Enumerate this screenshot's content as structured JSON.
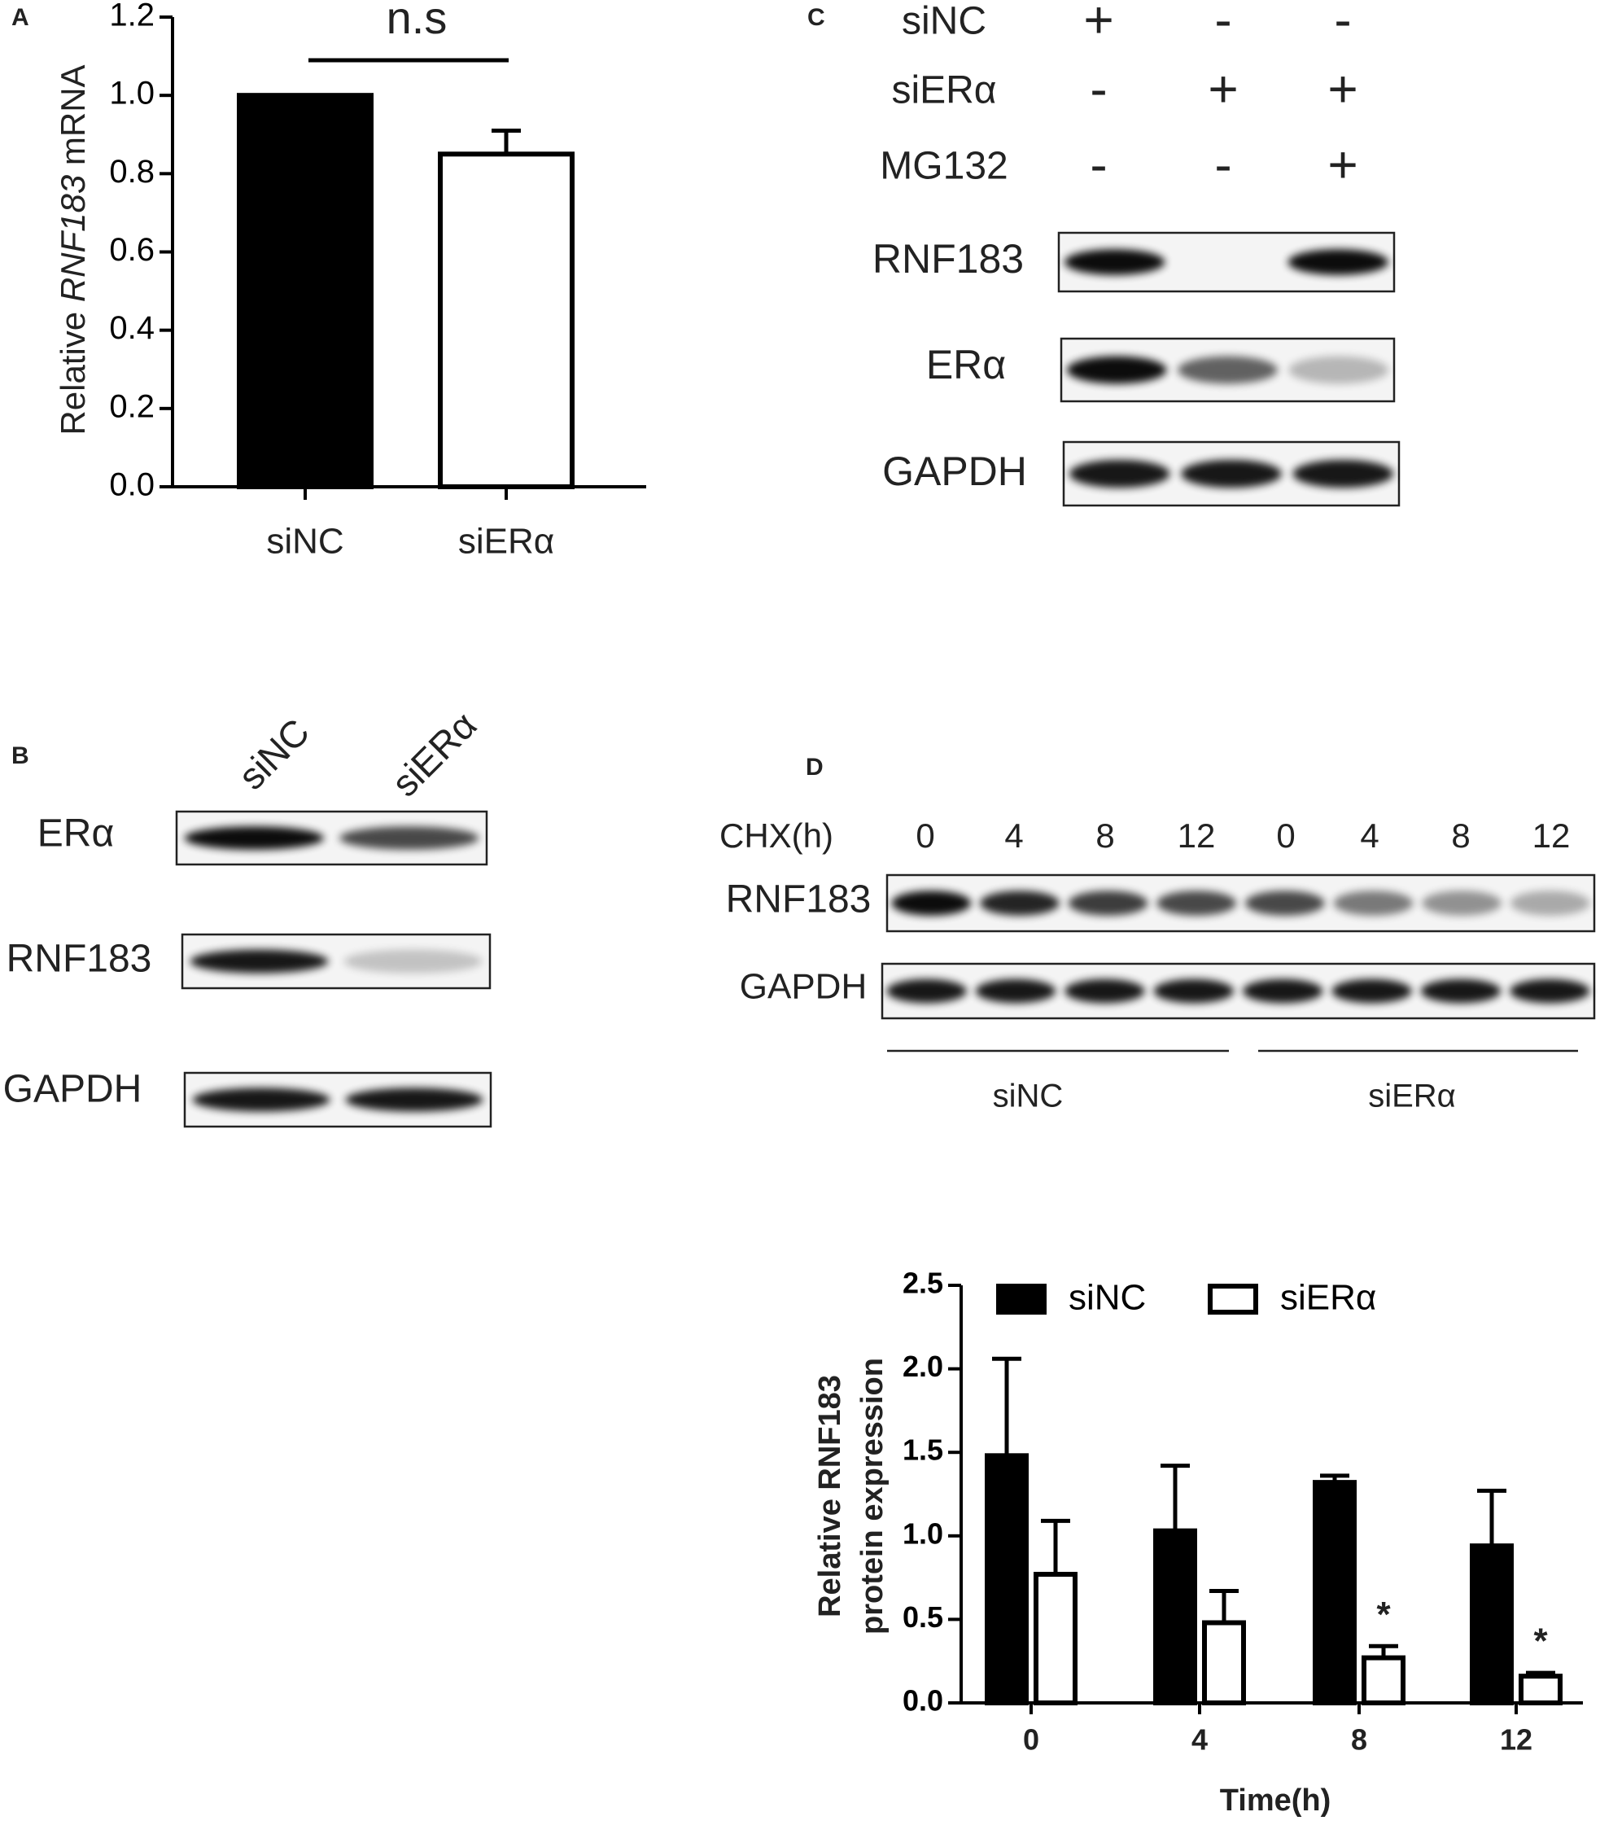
{
  "panel_labels": [
    "A",
    "B",
    "C",
    "D"
  ],
  "panel_b": {
    "lanes": [
      "siNC",
      "siERα"
    ],
    "blots": [
      "ERα",
      "RNF183",
      "GAPDH"
    ]
  },
  "panel_c": {
    "conditions": [
      {
        "name": "siNC",
        "lanes": [
          "+",
          "-",
          "-"
        ]
      },
      {
        "name": "siERα",
        "lanes": [
          "-",
          "+",
          "+"
        ]
      },
      {
        "name": "MG132",
        "lanes": [
          "-",
          "-",
          "+"
        ]
      }
    ],
    "blots": [
      "RNF183",
      "ERα",
      "GAPDH"
    ]
  },
  "panel_d": {
    "treatment": "CHX(h)",
    "lanes": [
      "0",
      "4",
      "8",
      "12",
      "0",
      "4",
      "8",
      "12"
    ],
    "blots": [
      "RNF183",
      "GAPDH"
    ],
    "groups": [
      "siNC",
      "siERα"
    ]
  },
  "chart_data": [
    {
      "type": "bar",
      "categories": [
        "siNC",
        "siERα"
      ],
      "values": [
        1.0,
        0.85
      ],
      "errors": [
        null,
        0.06
      ],
      "colors": [
        "#000000",
        "#ffffff"
      ],
      "ylim": [
        0,
        1.2
      ],
      "yticks": [
        {
          "value": 0,
          "label": "0.0"
        },
        0.2,
        0.4,
        0.6,
        0.8,
        {
          "value": 1,
          "label": "1.0"
        },
        1.2
      ],
      "ylabel": [
        "Relative ",
        "RNF183",
        " mRNA"
      ],
      "annotation": "n.s"
    },
    {
      "type": "grouped_bar",
      "categories": [
        "0",
        "4",
        "8",
        "12"
      ],
      "series": [
        {
          "name": "siNC",
          "color": "#000000",
          "values": [
            1.48,
            1.03,
            1.32,
            0.94
          ],
          "errors": [
            0.58,
            0.39,
            0.04,
            0.33
          ],
          "significance": [
            null,
            null,
            null,
            null
          ]
        },
        {
          "name": "siERα",
          "color": "#ffffff",
          "values": [
            0.77,
            0.48,
            0.27,
            0.16
          ],
          "errors": [
            0.32,
            0.19,
            0.07,
            0.02
          ],
          "significance": [
            null,
            null,
            "*",
            "*"
          ]
        }
      ],
      "ylim": [
        0,
        2.5
      ],
      "yticks": [
        {
          "value": 0,
          "label": "0.0"
        },
        0.5,
        {
          "value": 1,
          "label": "1.0"
        },
        1.5,
        {
          "value": 2,
          "label": "2.0"
        },
        2.5
      ],
      "ylabel": [
        "Relative RNF183",
        "protein expression"
      ],
      "xlabel": "Time(h)"
    }
  ]
}
